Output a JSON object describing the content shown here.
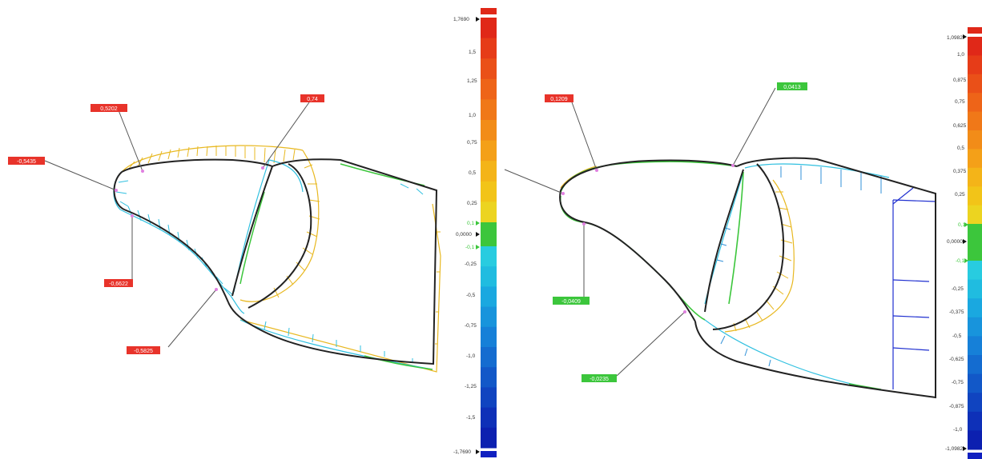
{
  "left_view": {
    "scale": {
      "max": "1,7690",
      "min": "-1,7690",
      "zero": "0,0000",
      "tol_plus": "0,1",
      "tol_minus": "-0,1",
      "ticks": [
        "1,5",
        "1,25",
        "1,0",
        "0,75",
        "0,5",
        "0,25",
        "-0,25",
        "-0,5",
        "-0,75",
        "-1,0",
        "-1,25",
        "-1,5"
      ]
    },
    "callouts": [
      {
        "id": "c1",
        "text": "0,5202",
        "status": "out"
      },
      {
        "id": "c2",
        "text": "0,74",
        "status": "out"
      },
      {
        "id": "c3",
        "text": "-0,5435",
        "status": "out"
      },
      {
        "id": "c4",
        "text": "-0,6622",
        "status": "out"
      },
      {
        "id": "c5",
        "text": "-0,5825",
        "status": "out"
      }
    ]
  },
  "right_view": {
    "scale": {
      "max": "1,0982",
      "min": "-1,0982",
      "zero": "0,0000",
      "tol_plus": "0,1",
      "tol_minus": "-0,1",
      "ticks": [
        "1,0",
        "0,875",
        "0,75",
        "0,625",
        "0,5",
        "0,375",
        "0,25",
        "-0,25",
        "-0,375",
        "-0,5",
        "-0,625",
        "-0,75",
        "-0,875",
        "-1,0"
      ]
    },
    "callouts": [
      {
        "id": "d1",
        "text": "0,1209",
        "status": "out"
      },
      {
        "id": "d2",
        "text": "0,0413",
        "status": "in"
      },
      {
        "id": "d3",
        "text": "-0,0409",
        "status": "in"
      },
      {
        "id": "d4",
        "text": "-0,0235",
        "status": "in"
      }
    ]
  },
  "colors": {
    "out_of_tolerance": "#e8332a",
    "in_tolerance": "#3cc63c",
    "nominal_outline": "#222222",
    "positive_deviation": "#e8b820",
    "negative_deviation": "#30c0e0",
    "large_negative": "#2030d0"
  }
}
